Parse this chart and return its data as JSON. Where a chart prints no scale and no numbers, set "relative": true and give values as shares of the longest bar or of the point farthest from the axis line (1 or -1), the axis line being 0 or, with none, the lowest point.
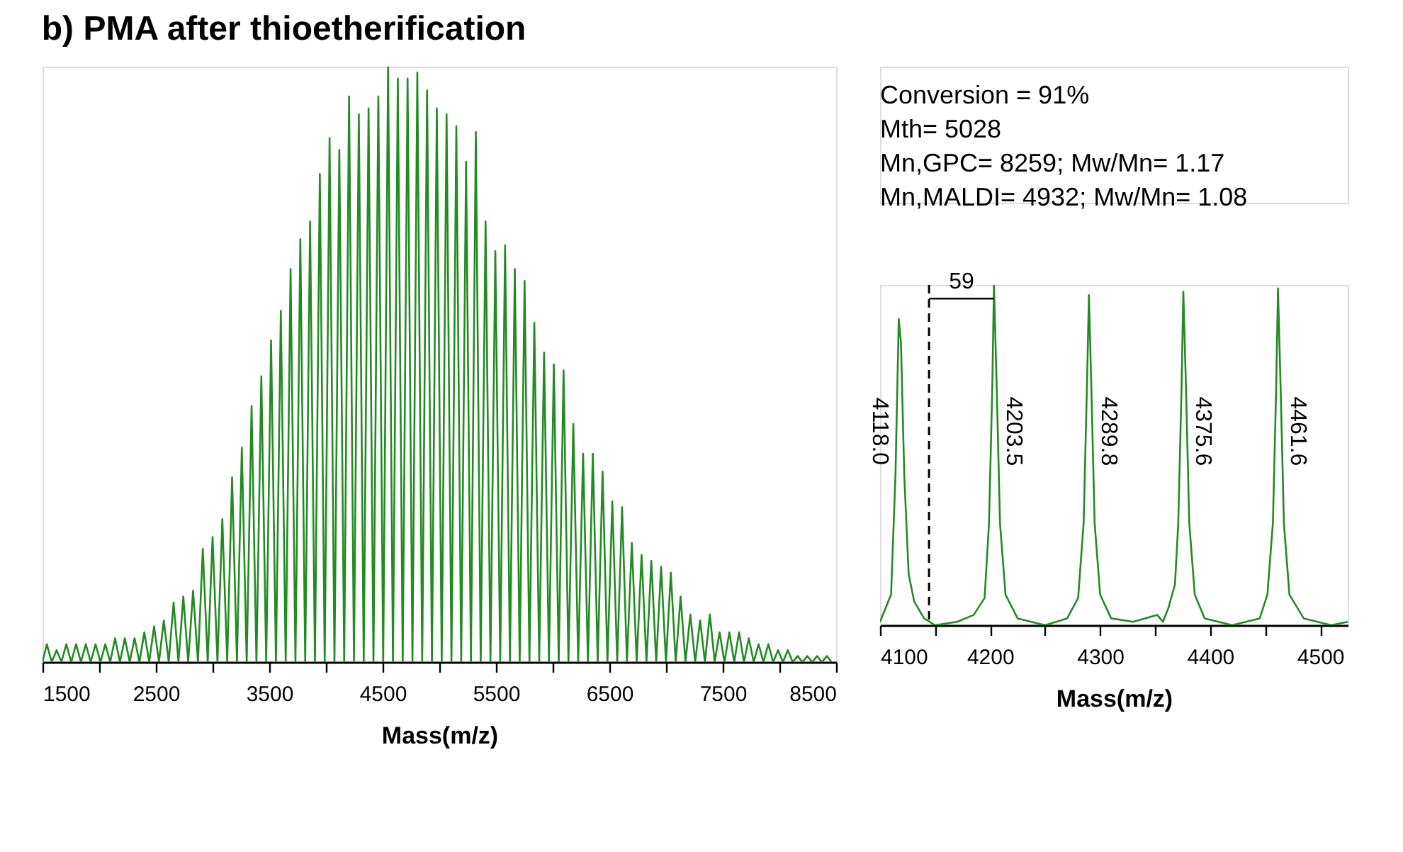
{
  "chart_data": [
    {
      "type": "line",
      "title": "b) PMA after thioetherification",
      "xlabel": "Mass(m/z)",
      "relative": true,
      "annotations": [
        "Conversion = 91%",
        "Mth= 5028",
        "Mn,GPC= 8259;  Mw/Mn= 1.17",
        "Mn,MALDI= 4932;  Mw/Mn= 1.08"
      ],
      "xlim": [
        1500,
        8500
      ],
      "xticks": [
        1500,
        {
          "value": 2000,
          "label": null
        },
        2500,
        {
          "value": 3000,
          "label": null
        },
        3500,
        {
          "value": 4000,
          "label": null
        },
        4500,
        {
          "value": 5000,
          "label": null
        },
        5500,
        {
          "value": 6000,
          "label": null
        },
        6500,
        {
          "value": 7000,
          "label": null
        },
        7500,
        {
          "value": 8000,
          "label": null
        },
        8500
      ],
      "series": [
        {
          "color": "#228b22",
          "x": [
            1500,
            1538,
            1581,
            1624,
            1667,
            1710,
            1753,
            1796,
            1839,
            1882,
            1925,
            1968,
            2011,
            2054,
            2097,
            2140,
            2183,
            2226,
            2269,
            2312,
            2355,
            2398,
            2441,
            2484,
            2527,
            2570,
            2613,
            2656,
            2699,
            2742,
            2785,
            2828,
            2871,
            2914,
            2957,
            3000,
            3043,
            3086,
            3129,
            3172,
            3215,
            3258,
            3301,
            3344,
            3387,
            3430,
            3473,
            3516,
            3559,
            3602,
            3645,
            3688,
            3731,
            3774,
            3817,
            3860,
            3903,
            3946,
            3989,
            4032,
            4075,
            4118,
            4161,
            4204,
            4247,
            4290,
            4333,
            4376,
            4419,
            4462,
            4505,
            4548,
            4591,
            4634,
            4677,
            4720,
            4763,
            4806,
            4849,
            4892,
            4935,
            4978,
            5021,
            5064,
            5107,
            5150,
            5193,
            5236,
            5279,
            5322,
            5365,
            5408,
            5451,
            5494,
            5537,
            5580,
            5623,
            5666,
            5709,
            5752,
            5795,
            5838,
            5881,
            5924,
            5967,
            6010,
            6053,
            6096,
            6139,
            6182,
            6225,
            6268,
            6311,
            6354,
            6397,
            6440,
            6483,
            6526,
            6569,
            6612,
            6655,
            6698,
            6741,
            6784,
            6827,
            6870,
            6913,
            6956,
            6999,
            7042,
            7085,
            7128,
            7171,
            7214,
            7257,
            7300,
            7343,
            7386,
            7429,
            7472,
            7515,
            7558,
            7601,
            7644,
            7687,
            7730,
            7773,
            7816,
            7859,
            7902,
            7945,
            7988,
            8031,
            8074,
            8117,
            8160,
            8203,
            8246,
            8289,
            8332,
            8375,
            8418,
            8461
          ],
          "values": [
            0,
            0.03,
            0,
            0.02,
            0,
            0.03,
            0,
            0.03,
            0,
            0.03,
            0,
            0.03,
            0,
            0.03,
            0,
            0.04,
            0,
            0.04,
            0,
            0.04,
            0,
            0.05,
            0,
            0.06,
            0,
            0.07,
            0,
            0.1,
            0,
            0.11,
            0,
            0.12,
            0,
            0.19,
            0,
            0.21,
            0,
            0.24,
            0,
            0.31,
            0,
            0.36,
            0,
            0.43,
            0,
            0.48,
            0,
            0.54,
            0,
            0.59,
            0,
            0.66,
            0,
            0.71,
            0,
            0.74,
            0,
            0.82,
            0,
            0.88,
            0,
            0.86,
            0,
            0.95,
            0,
            0.92,
            0,
            0.93,
            0,
            0.95,
            0,
            1,
            0,
            0.98,
            0,
            0.98,
            0,
            0.99,
            0,
            0.96,
            0,
            0.93,
            0,
            0.92,
            0,
            0.9,
            0,
            0.84,
            0,
            0.89,
            0,
            0.74,
            0,
            0.69,
            0,
            0.7,
            0,
            0.66,
            0,
            0.64,
            0,
            0.57,
            0,
            0.52,
            0,
            0.5,
            0,
            0.49,
            0,
            0.4,
            0,
            0.35,
            0,
            0.35,
            0,
            0.32,
            0,
            0.27,
            0,
            0.26,
            0,
            0.2,
            0,
            0.18,
            0,
            0.17,
            0,
            0.16,
            0,
            0.15,
            0,
            0.11,
            0,
            0.08,
            0,
            0.07,
            0,
            0.08,
            0,
            0.05,
            0,
            0.05,
            0,
            0.05,
            0,
            0.04,
            0,
            0.03,
            0,
            0.03,
            0,
            0.02,
            0,
            0.02,
            0,
            0.01,
            0,
            0.01,
            0,
            0.01,
            0,
            0.01,
            0
          ]
        }
      ]
    },
    {
      "type": "line",
      "xlabel": "Mass(m/z)",
      "relative": true,
      "xlim": [
        4100,
        4525
      ],
      "xticks": [
        4100,
        {
          "value": 4150,
          "label": null
        },
        4200,
        {
          "value": 4250,
          "label": null
        },
        4300,
        {
          "value": 4350,
          "label": null
        },
        4400,
        {
          "value": 4450,
          "label": null
        },
        4500
      ],
      "ref_lines": [
        {
          "axis": "x",
          "value": 4144.5,
          "color": "#000000",
          "line_style": "dashed"
        }
      ],
      "annotations": [
        {
          "text": "4118.0",
          "x": 4118.0,
          "y": 0.57
        },
        {
          "text": "4203.5",
          "x": 4203.5,
          "y": 0.57
        },
        {
          "text": "4289.8",
          "x": 4289.8,
          "y": 0.57
        },
        {
          "text": "4375.6",
          "x": 4375.6,
          "y": 0.57
        },
        {
          "text": "4461.6",
          "x": 4461.6,
          "y": 0.57
        },
        {
          "text": "59",
          "x": 4174,
          "y": 0.96
        }
      ],
      "series": [
        {
          "color": "#228b22",
          "x": [
            4100,
            4105,
            4110,
            4114,
            4117,
            4119,
            4122,
            4126,
            4131,
            4140,
            4150,
            4170,
            4185,
            4195,
            4199,
            4202,
            4203.5,
            4206,
            4209,
            4214,
            4225,
            4250,
            4270,
            4280,
            4285,
            4288,
            4289.8,
            4292,
            4295,
            4300,
            4310,
            4330,
            4352,
            4357,
            4362,
            4368,
            4371,
            4374,
            4375.6,
            4378,
            4381,
            4386,
            4395,
            4420,
            4445,
            4452,
            4457,
            4460,
            4461.6,
            4464,
            4467,
            4472,
            4485,
            4510,
            4525
          ],
          "values": [
            0.01,
            0.05,
            0.09,
            0.44,
            0.9,
            0.83,
            0.44,
            0.15,
            0.07,
            0.02,
            0,
            0.01,
            0.03,
            0.08,
            0.3,
            0.7,
            1,
            0.7,
            0.3,
            0.09,
            0.02,
            0,
            0.02,
            0.08,
            0.3,
            0.7,
            0.97,
            0.7,
            0.3,
            0.09,
            0.02,
            0.01,
            0.03,
            0.01,
            0.05,
            0.12,
            0.3,
            0.7,
            0.98,
            0.7,
            0.3,
            0.09,
            0.02,
            0,
            0.02,
            0.09,
            0.3,
            0.7,
            0.99,
            0.7,
            0.3,
            0.09,
            0.02,
            0,
            0.01
          ]
        },
        {
          "type": "line",
          "color": "#000000",
          "x": [
            4144.5,
            4203.5
          ],
          "values": [
            0.96,
            0.96
          ]
        }
      ]
    }
  ]
}
